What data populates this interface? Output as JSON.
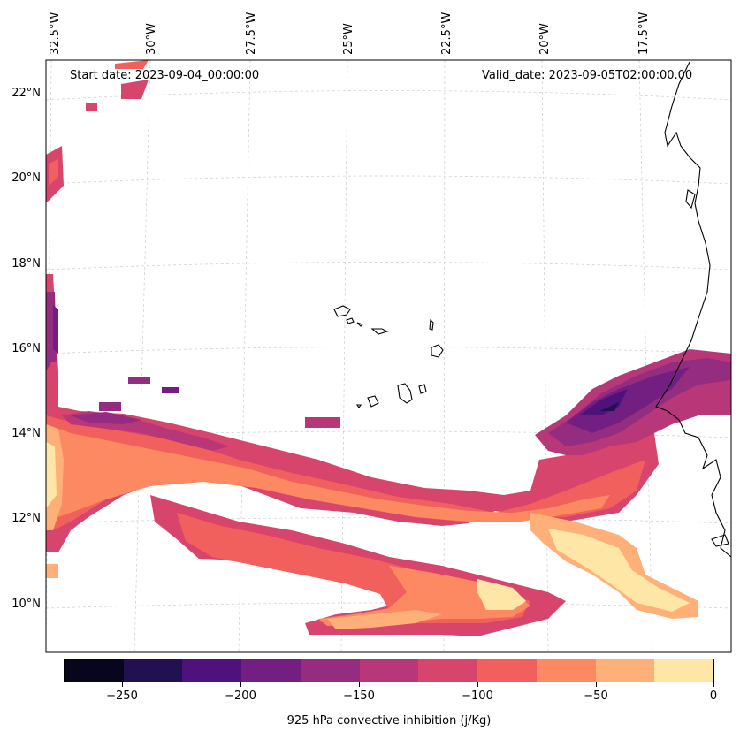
{
  "map": {
    "annotations": {
      "start_date": "Start date: 2023-09-04_00:00:00",
      "valid_date": "Valid_date: 2023-09-05T02:00:00.00"
    },
    "lon_labels": [
      "32.5°W",
      "30°W",
      "27.5°W",
      "25°W",
      "22.5°W",
      "20°W",
      "17.5°W"
    ],
    "lat_labels": [
      "22°N",
      "20°N",
      "18°N",
      "16°N",
      "14°N",
      "12°N",
      "10°N"
    ],
    "features": [
      "Cape Verde islands",
      "West African coastline"
    ]
  },
  "colorbar": {
    "title": "925 hPa convective inhibition (j/Kg)",
    "tick_labels": [
      "−250",
      "−200",
      "−150",
      "−100",
      "−50",
      "0"
    ],
    "levels": [
      -275,
      -250,
      -225,
      -200,
      -175,
      -150,
      -125,
      -100,
      -75,
      -50,
      -25,
      0
    ],
    "colors": [
      "#07061c",
      "#221150",
      "#4f117b",
      "#721f81",
      "#942c80",
      "#b73779",
      "#d8456c",
      "#f1605d",
      "#fc8961",
      "#feb078",
      "#fde6a6"
    ]
  }
}
